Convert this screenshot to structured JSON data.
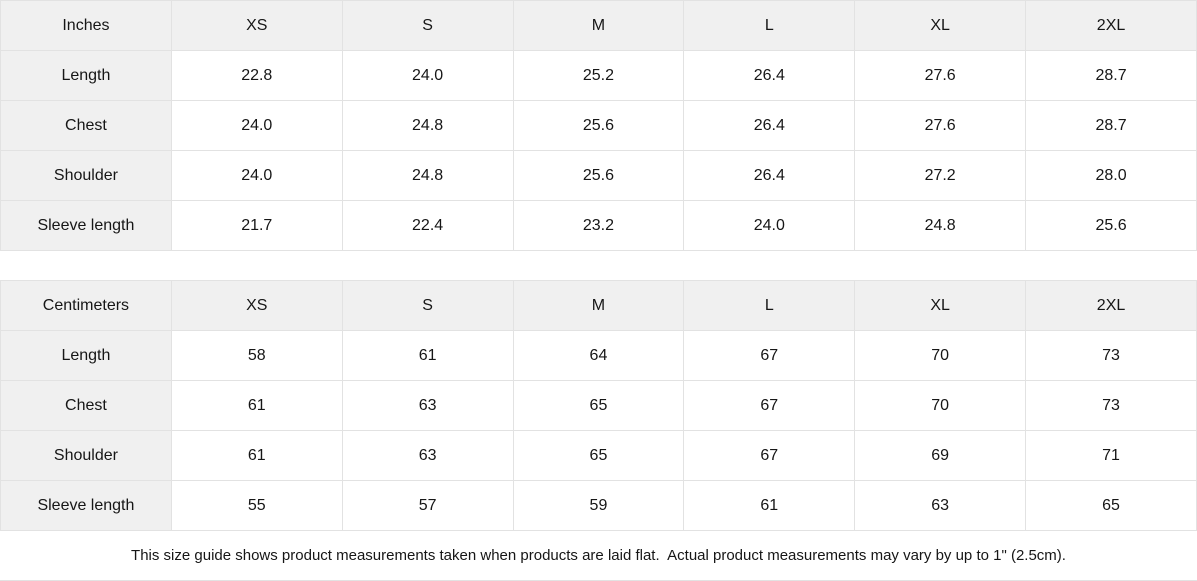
{
  "colors": {
    "shaded_cell_bg": "#f0f0f0",
    "border": "#e2e2e2",
    "text": "#161616",
    "background": "#ffffff"
  },
  "note": "This size guide shows product measurements taken when products are laid flat.  Actual product measurements may vary by up to 1\" (2.5cm).",
  "chart_data": [
    {
      "type": "table",
      "unit_header": "Inches",
      "size_columns": [
        "XS",
        "S",
        "M",
        "L",
        "XL",
        "2XL"
      ],
      "rows": [
        {
          "label": "Length",
          "values": [
            "22.8",
            "24.0",
            "25.2",
            "26.4",
            "27.6",
            "28.7"
          ]
        },
        {
          "label": "Chest",
          "values": [
            "24.0",
            "24.8",
            "25.6",
            "26.4",
            "27.6",
            "28.7"
          ]
        },
        {
          "label": "Shoulder",
          "values": [
            "24.0",
            "24.8",
            "25.6",
            "26.4",
            "27.2",
            "28.0"
          ]
        },
        {
          "label": "Sleeve length",
          "values": [
            "21.7",
            "22.4",
            "23.2",
            "24.0",
            "24.8",
            "25.6"
          ]
        }
      ]
    },
    {
      "type": "table",
      "unit_header": "Centimeters",
      "size_columns": [
        "XS",
        "S",
        "M",
        "L",
        "XL",
        "2XL"
      ],
      "rows": [
        {
          "label": "Length",
          "values": [
            "58",
            "61",
            "64",
            "67",
            "70",
            "73"
          ]
        },
        {
          "label": "Chest",
          "values": [
            "61",
            "63",
            "65",
            "67",
            "70",
            "73"
          ]
        },
        {
          "label": "Shoulder",
          "values": [
            "61",
            "63",
            "65",
            "67",
            "69",
            "71"
          ]
        },
        {
          "label": "Sleeve length",
          "values": [
            "55",
            "57",
            "59",
            "61",
            "63",
            "65"
          ]
        }
      ]
    }
  ]
}
